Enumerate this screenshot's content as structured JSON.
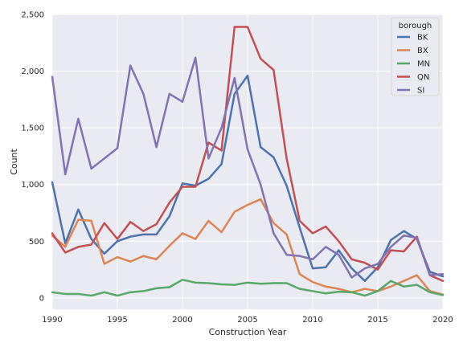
{
  "chart_data": {
    "type": "line",
    "xlabel": "Construction Year",
    "ylabel": "Count",
    "xlim": [
      1990,
      2020
    ],
    "ylim": [
      -100,
      2500
    ],
    "xticks": [
      1990,
      1995,
      2000,
      2005,
      2010,
      2015,
      2020
    ],
    "yticks": [
      0,
      500,
      1000,
      1500,
      2000,
      2500
    ],
    "ytick_labels": [
      "0",
      "500",
      "1,000",
      "1,500",
      "2,000",
      "2,500"
    ],
    "grid": true,
    "legend": {
      "title": "borough",
      "placement": "top-right"
    },
    "x": [
      1990,
      1991,
      1992,
      1993,
      1994,
      1995,
      1996,
      1997,
      1998,
      1999,
      2000,
      2001,
      2002,
      2003,
      2004,
      2005,
      2006,
      2007,
      2008,
      2009,
      2010,
      2011,
      2012,
      2013,
      2014,
      2015,
      2016,
      2017,
      2018,
      2019,
      2020
    ],
    "series": [
      {
        "name": "BK",
        "color": "#4c72b0",
        "values": [
          1020,
          480,
          780,
          520,
          390,
          500,
          540,
          560,
          560,
          720,
          1010,
          990,
          1050,
          1180,
          1800,
          1960,
          1330,
          1240,
          990,
          620,
          260,
          270,
          420,
          260,
          150,
          270,
          510,
          590,
          520,
          230,
          190
        ]
      },
      {
        "name": "BX",
        "color": "#dd8452",
        "values": [
          550,
          450,
          690,
          680,
          300,
          360,
          320,
          370,
          340,
          460,
          570,
          520,
          680,
          580,
          760,
          820,
          870,
          660,
          560,
          210,
          140,
          100,
          80,
          50,
          80,
          60,
          100,
          150,
          200,
          60,
          30
        ]
      },
      {
        "name": "MN",
        "color": "#55a868",
        "values": [
          50,
          35,
          35,
          20,
          50,
          20,
          50,
          60,
          85,
          95,
          160,
          135,
          130,
          120,
          115,
          135,
          125,
          130,
          130,
          80,
          60,
          40,
          55,
          50,
          20,
          60,
          150,
          100,
          115,
          50,
          25
        ]
      },
      {
        "name": "QN",
        "color": "#c44e52",
        "values": [
          570,
          400,
          450,
          470,
          660,
          520,
          670,
          590,
          650,
          840,
          980,
          980,
          1370,
          1300,
          2390,
          2390,
          2110,
          2010,
          1230,
          680,
          570,
          630,
          500,
          340,
          310,
          250,
          420,
          410,
          540,
          200,
          150
        ]
      },
      {
        "name": "SI",
        "color": "#8172b3",
        "values": [
          1950,
          1090,
          1580,
          1140,
          1230,
          1320,
          2050,
          1800,
          1330,
          1800,
          1730,
          2120,
          1230,
          1500,
          1940,
          1310,
          1000,
          570,
          380,
          370,
          340,
          450,
          380,
          180,
          260,
          300,
          450,
          550,
          530,
          200,
          210
        ]
      }
    ]
  }
}
